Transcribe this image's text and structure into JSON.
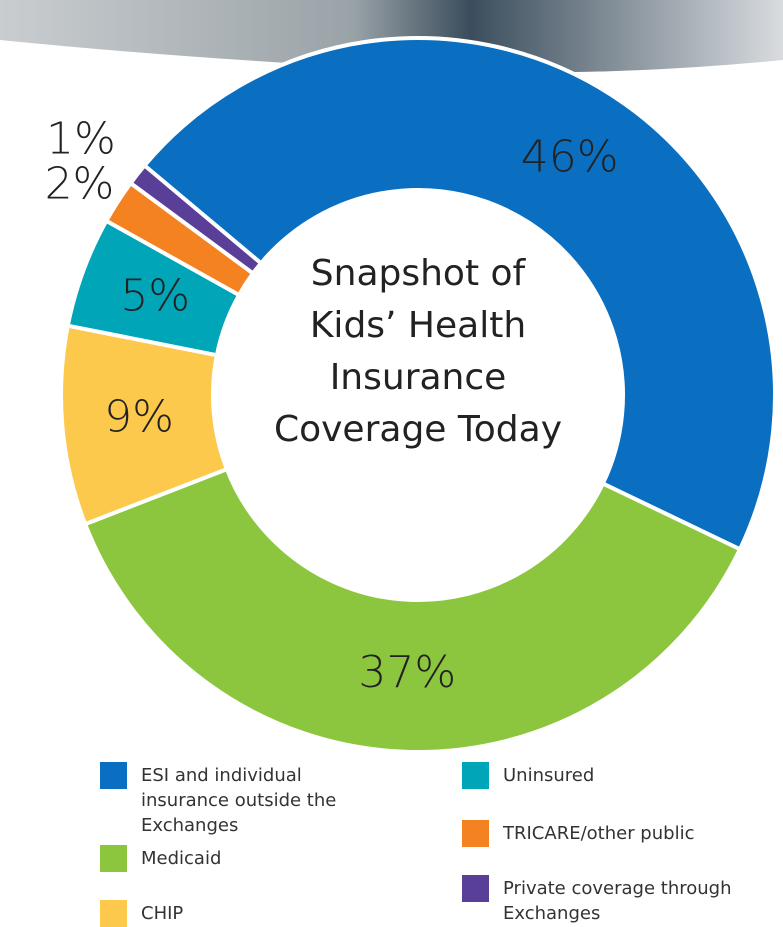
{
  "chart_data": {
    "type": "donut",
    "title": "Snapshot of Kids’ Health Insurance Coverage Today",
    "categories": [
      "ESI and individual insurance outside the Exchanges",
      "Medicaid",
      "CHIP",
      "Uninsured",
      "TRICARE/other public",
      "Private coverage through Exchanges"
    ],
    "values": [
      46,
      37,
      9,
      5,
      2,
      1
    ],
    "value_labels": [
      "46%",
      "37%",
      "9%",
      "5%",
      "2%",
      "1%"
    ],
    "colors": [
      "#0a6fc1",
      "#8cc63e",
      "#fdc94c",
      "#00a5b8",
      "#f58220",
      "#5a3f98"
    ]
  }
}
